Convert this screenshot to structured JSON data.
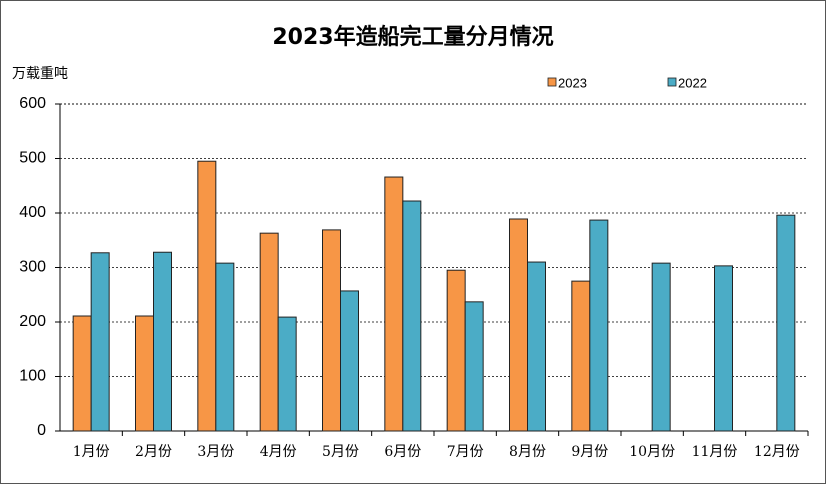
{
  "chart_data": {
    "type": "bar",
    "title": "2023年造船完工量分月情况",
    "y_label": "万载重吨",
    "categories": [
      "1月份",
      "2月份",
      "3月份",
      "4月份",
      "5月份",
      "6月份",
      "7月份",
      "8月份",
      "9月份",
      "10月份",
      "11月份",
      "12月份"
    ],
    "series": [
      {
        "name": "2023",
        "color": "#f79646",
        "values": [
          211,
          211,
          495,
          363,
          369,
          466,
          295,
          389,
          275,
          null,
          null,
          null
        ]
      },
      {
        "name": "2022",
        "color": "#4bacc6",
        "values": [
          327,
          328,
          308,
          209,
          257,
          422,
          237,
          310,
          387,
          308,
          303,
          396
        ]
      }
    ],
    "ylim": [
      0,
      600
    ],
    "yticks": [
      0,
      100,
      200,
      300,
      400,
      500,
      600
    ],
    "grid": true
  }
}
